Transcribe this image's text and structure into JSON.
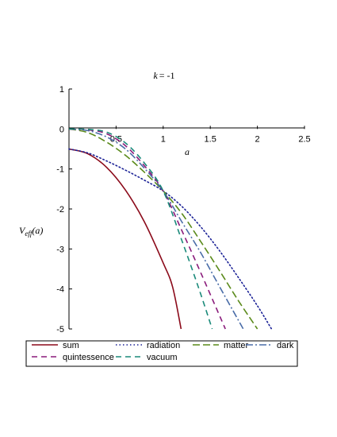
{
  "chart_data": {
    "type": "line",
    "title_prefix": "k",
    "title_suffix": "= -1",
    "xlabel": "a",
    "ylabel_main": "V",
    "ylabel_sub": "eff",
    "ylabel_arg": "(a)",
    "xlim": [
      0,
      2.5
    ],
    "ylim": [
      -5,
      1
    ],
    "x_ticks": [
      0.5,
      1,
      1.5,
      2,
      2.5
    ],
    "x_tick_labels": [
      "0.5",
      "1",
      "1.5",
      "2",
      "2.5"
    ],
    "y_ticks": [
      1,
      0,
      -1,
      -2,
      -3,
      -4,
      -5
    ],
    "y_tick_labels": [
      "1",
      "0",
      "-1",
      "-2",
      "-3",
      "-4",
      "-5"
    ],
    "legend_position": "bottom",
    "series": [
      {
        "name": "sum",
        "color": "#8b0a1a",
        "dash": "solid",
        "x": [
          0,
          0.2,
          0.4,
          0.6,
          0.8,
          1.0,
          1.1,
          1.19
        ],
        "y": [
          -0.5,
          -0.62,
          -0.96,
          -1.53,
          -2.32,
          -3.35,
          -3.95,
          -5.0
        ]
      },
      {
        "name": "radiation",
        "color": "#1a2196",
        "dash": "dot",
        "x": [
          0,
          0.2,
          0.4,
          0.6,
          0.8,
          1.0,
          1.2,
          1.4,
          1.6,
          1.8,
          2.0,
          2.15
        ],
        "y": [
          -0.5,
          -0.6,
          -0.8,
          -1.03,
          -1.28,
          -1.55,
          -1.94,
          -2.45,
          -3.05,
          -3.72,
          -4.42,
          -5.0
        ]
      },
      {
        "name": "matter",
        "color": "#5a8a1a",
        "dash": "longdash",
        "x": [
          0,
          0.2,
          0.4,
          0.6,
          0.8,
          1.0,
          1.2,
          1.4,
          1.6,
          1.8,
          2.0
        ],
        "y": [
          0,
          -0.09,
          -0.33,
          -0.66,
          -1.08,
          -1.55,
          -2.12,
          -2.82,
          -3.55,
          -4.3,
          -5.0
        ]
      },
      {
        "name": "dark",
        "color": "#4a6da8",
        "dash": "dashdot",
        "x": [
          0,
          0.2,
          0.4,
          0.6,
          0.8,
          1.0,
          1.2,
          1.4,
          1.6,
          1.85
        ],
        "y": [
          0,
          -0.04,
          -0.2,
          -0.5,
          -0.98,
          -1.55,
          -2.33,
          -3.1,
          -3.95,
          -5.0
        ]
      },
      {
        "name": "quintessence",
        "color": "#8a1a7a",
        "dash": "dash",
        "x": [
          0,
          0.2,
          0.4,
          0.6,
          0.8,
          1.0,
          1.2,
          1.4,
          1.66
        ],
        "y": [
          0,
          -0.02,
          -0.12,
          -0.42,
          -0.92,
          -1.55,
          -2.55,
          -3.6,
          -5.0
        ]
      },
      {
        "name": "vacuum",
        "color": "#1a8a7a",
        "dash": "dash",
        "x": [
          0,
          0.2,
          0.4,
          0.6,
          0.8,
          1.0,
          1.2,
          1.38,
          1.52
        ],
        "y": [
          0,
          -0.01,
          -0.08,
          -0.35,
          -0.85,
          -1.55,
          -2.8,
          -4.0,
          -5.0
        ]
      }
    ]
  }
}
